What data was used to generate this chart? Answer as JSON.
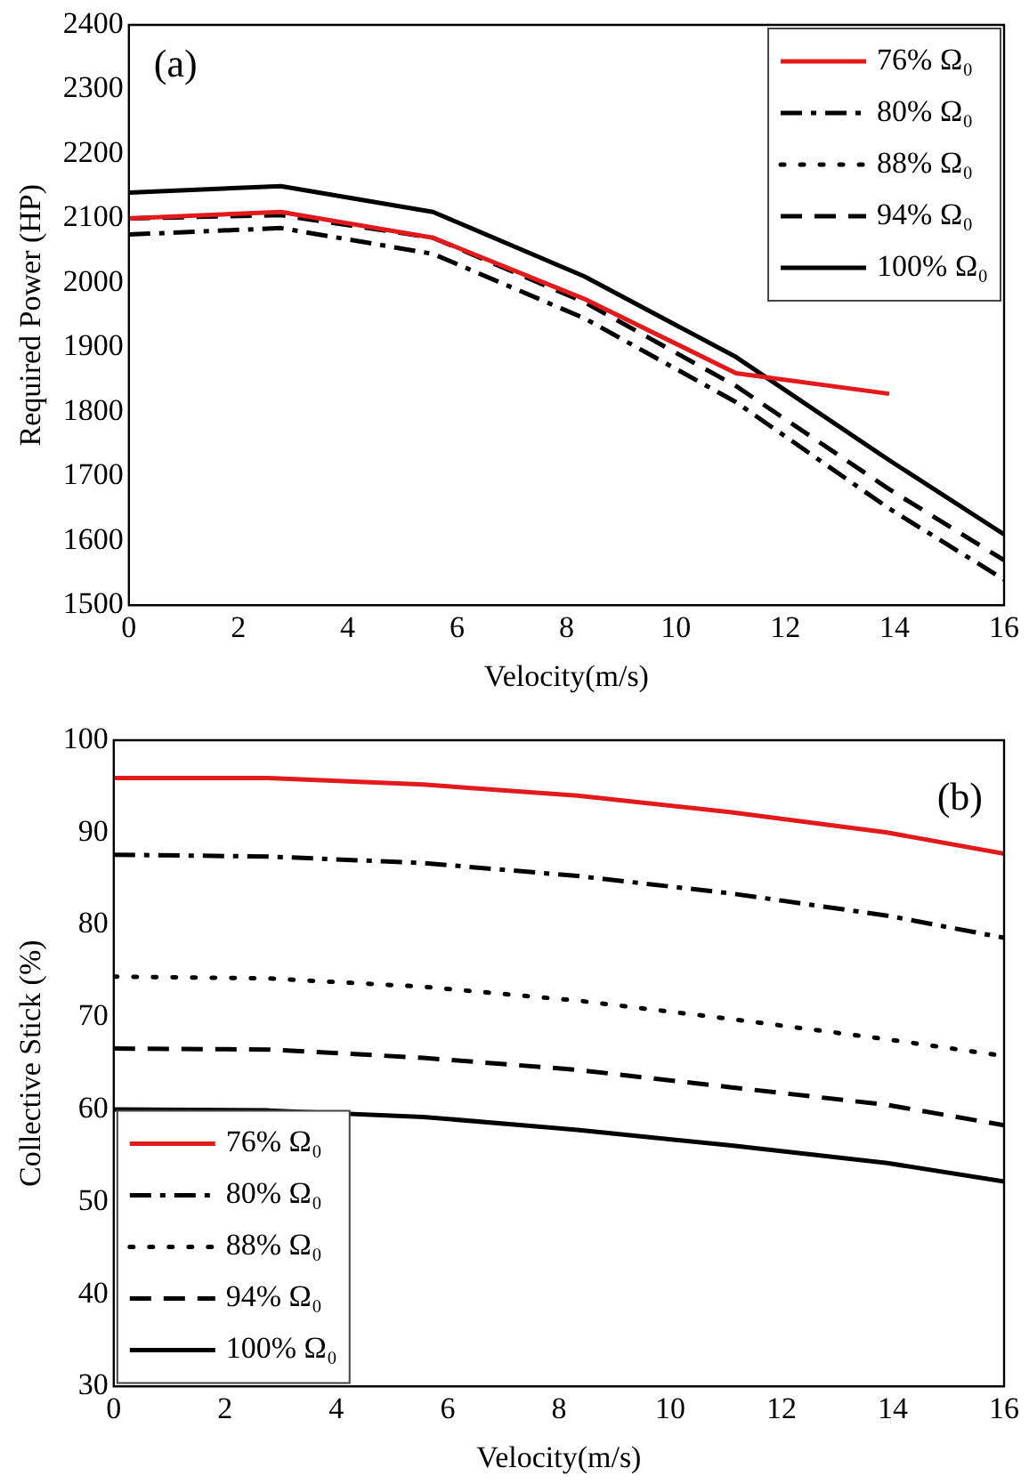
{
  "chart_data": [
    {
      "type": "line",
      "ylabel": "Required Power (HP)",
      "xlabel": "Velocity(m/s)",
      "annotations": [
        "(a)"
      ],
      "legend": "top right",
      "grid": false,
      "marker": "none",
      "x": [
        0,
        2.78,
        5.56,
        8.33,
        11.1,
        13.9,
        16
      ],
      "xlim": [
        0,
        16
      ],
      "xticks": [
        0,
        2,
        4,
        6,
        8,
        10,
        12,
        14,
        16
      ],
      "ylim": [
        1500,
        2400
      ],
      "yticks": [
        1500,
        1600,
        1700,
        1800,
        1900,
        2000,
        2100,
        2200,
        2300,
        2400
      ],
      "series": [
        {
          "name": "76% Ω₀",
          "color": "#e31a1c",
          "line_style": "solid",
          "values": [
            2100,
            2110,
            2070,
            1975,
            1860,
            1828,
            null
          ]
        },
        {
          "name": "80% Ω₀",
          "color": "#000000",
          "line_style": "dashdot",
          "values": [
            2075,
            2085,
            2045,
            1945,
            1815,
            1650,
            1540
          ]
        },
        {
          "name": "88% Ω₀",
          "color": "#000000",
          "line_style": "dotted",
          "values": [
            null,
            null,
            null,
            null,
            null,
            null,
            null
          ]
        },
        {
          "name": "94% Ω₀",
          "color": "#000000",
          "line_style": "dashed",
          "values": [
            2100,
            2105,
            2070,
            1970,
            1840,
            1680,
            1570
          ]
        },
        {
          "name": "100% Ω₀",
          "color": "#000000",
          "line_style": "solid",
          "values": [
            2140,
            2150,
            2110,
            2010,
            1885,
            1725,
            1610
          ]
        }
      ]
    },
    {
      "type": "line",
      "ylabel": "Collective Stick (%)",
      "xlabel": "Velocity(m/s)",
      "annotations": [
        "(b)"
      ],
      "legend": "bottom left",
      "grid": false,
      "marker": "none",
      "x": [
        0,
        2.78,
        5.56,
        8.33,
        11.1,
        13.9,
        16
      ],
      "xlim": [
        0,
        16
      ],
      "xticks": [
        0,
        2,
        4,
        6,
        8,
        10,
        12,
        14,
        16
      ],
      "ylim": [
        30,
        100
      ],
      "yticks": [
        30,
        40,
        50,
        60,
        70,
        80,
        90,
        100
      ],
      "series": [
        {
          "name": "76% Ω₀",
          "color": "#e31a1c",
          "line_style": "solid",
          "values": [
            95.9,
            95.9,
            95.2,
            94,
            92.2,
            90,
            87.7
          ]
        },
        {
          "name": "80% Ω₀",
          "color": "#000000",
          "line_style": "dashdot",
          "values": [
            87.6,
            87.4,
            86.7,
            85.3,
            83.4,
            81,
            78.6
          ]
        },
        {
          "name": "88% Ω₀",
          "color": "#000000",
          "line_style": "dotted",
          "values": [
            74.4,
            74.2,
            73.3,
            71.8,
            69.8,
            67.6,
            65.8
          ]
        },
        {
          "name": "94% Ω₀",
          "color": "#000000",
          "line_style": "dashed",
          "values": [
            66.6,
            66.5,
            65.6,
            64.3,
            62.4,
            60.5,
            58.3
          ]
        },
        {
          "name": "100% Ω₀",
          "color": "#000000",
          "line_style": "solid",
          "values": [
            60,
            59.9,
            59.2,
            57.8,
            56.1,
            54.2,
            52.2
          ]
        }
      ]
    }
  ]
}
